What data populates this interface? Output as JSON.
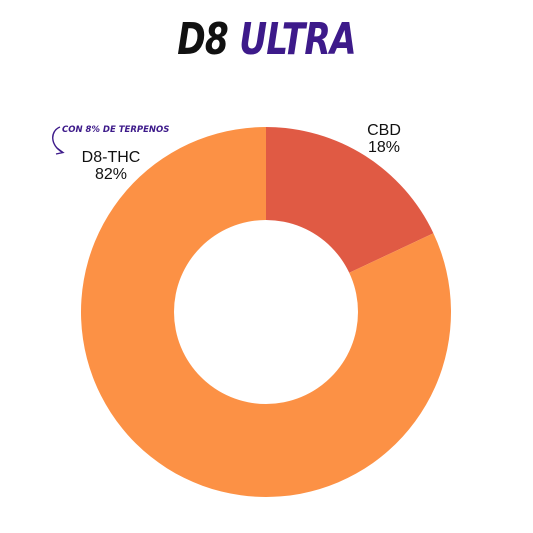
{
  "title": {
    "part1": "D8",
    "part2": "ULTRA"
  },
  "annotation": "CON 8% DE TERPENOS",
  "colors": {
    "title_dark": "#111111",
    "title_accent": "#3d1a8a",
    "annotation": "#3d1a8a"
  },
  "chart_data": {
    "type": "pie",
    "donut": true,
    "title": "D8 ULTRA",
    "slices": [
      {
        "label": "CBD",
        "value": 18,
        "value_label": "18%",
        "color": "#e05a44"
      },
      {
        "label": "D8-THC",
        "value": 82,
        "value_label": "82%",
        "color": "#fc9145"
      }
    ]
  }
}
